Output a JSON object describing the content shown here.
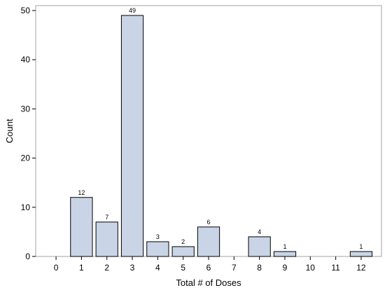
{
  "chart_data": {
    "type": "bar",
    "title": "",
    "xlabel": "Total # of Doses",
    "ylabel": "Count",
    "x_ticks": [
      0,
      1,
      2,
      3,
      4,
      5,
      6,
      7,
      8,
      9,
      10,
      11,
      12
    ],
    "categories": [
      1,
      2,
      3,
      4,
      5,
      6,
      8,
      9,
      12
    ],
    "values": [
      12,
      7,
      49,
      3,
      2,
      6,
      4,
      1,
      1
    ],
    "data_labels": [
      "12",
      "7",
      "49",
      "3",
      "2",
      "6",
      "4",
      "1",
      "1"
    ],
    "y_ticks": [
      0,
      10,
      20,
      30,
      40,
      50
    ],
    "xlim": [
      -0.8,
      12.8
    ],
    "ylim": [
      0,
      51
    ],
    "grid": false,
    "legend": "none",
    "colors": {
      "bar_fill": "#c9d5e6",
      "bar_stroke": "#000000",
      "axis_frame": "#a3a3a3",
      "text": "#000000"
    }
  }
}
